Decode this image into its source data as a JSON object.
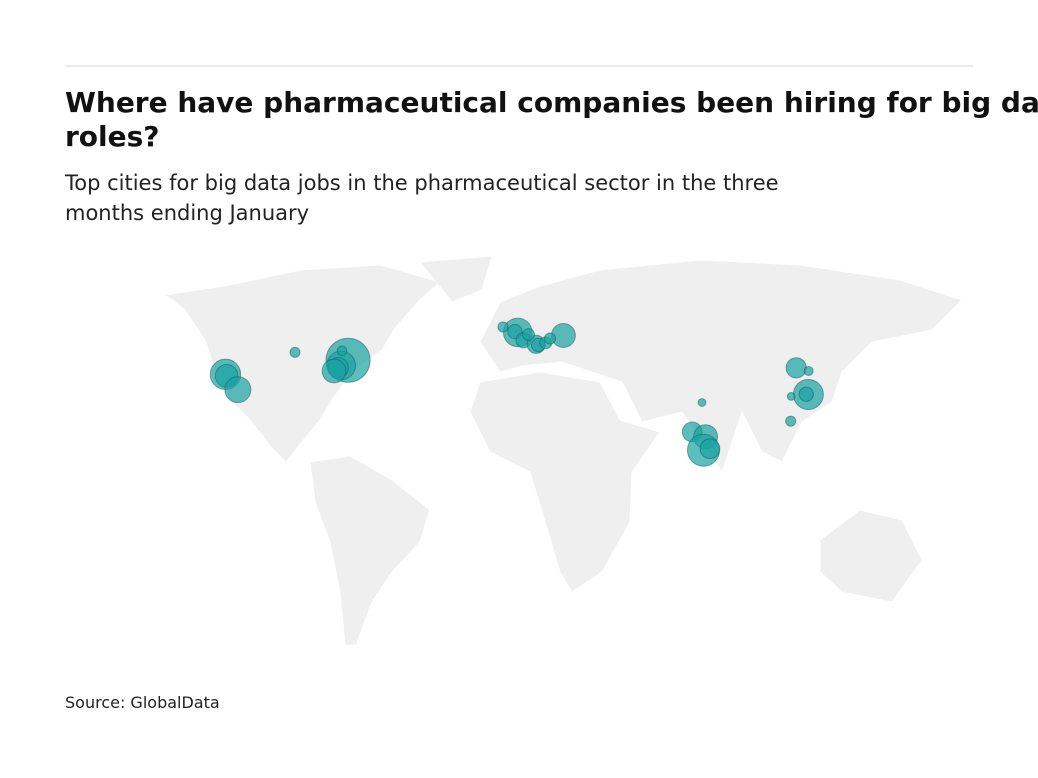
{
  "chart_data": {
    "type": "bubble-map",
    "title": "Where have pharmaceutical companies been hiring for big data roles?",
    "subtitle": "Top cities for big data jobs in the pharmaceutical sector in the three months ending January",
    "source": "Source: GlobalData",
    "color": "#1aa3a3",
    "points": [
      {
        "lon": -122.4,
        "lat": 37.8,
        "value": 90
      },
      {
        "lon": -121.9,
        "lat": 37.3,
        "value": 50
      },
      {
        "lon": -117.2,
        "lat": 32.8,
        "value": 66
      },
      {
        "lon": -71.1,
        "lat": 42.4,
        "value": 190
      },
      {
        "lon": -74.0,
        "lat": 40.7,
        "value": 80
      },
      {
        "lon": -75.2,
        "lat": 40.0,
        "value": 40
      },
      {
        "lon": -77.0,
        "lat": 38.9,
        "value": 55
      },
      {
        "lon": -93.3,
        "lat": 45.0,
        "value": 10
      },
      {
        "lon": -73.6,
        "lat": 45.5,
        "value": 9
      },
      {
        "lon": -0.1,
        "lat": 51.5,
        "value": 80
      },
      {
        "lon": -1.3,
        "lat": 51.8,
        "value": 20
      },
      {
        "lon": -6.3,
        "lat": 53.3,
        "value": 10
      },
      {
        "lon": 2.3,
        "lat": 48.9,
        "value": 22
      },
      {
        "lon": 7.6,
        "lat": 47.6,
        "value": 32
      },
      {
        "lon": 8.5,
        "lat": 47.4,
        "value": 18
      },
      {
        "lon": 4.4,
        "lat": 50.8,
        "value": 14
      },
      {
        "lon": 11.6,
        "lat": 48.1,
        "value": 14
      },
      {
        "lon": 19.0,
        "lat": 50.5,
        "value": 56
      },
      {
        "lon": 13.4,
        "lat": 49.5,
        "value": 12
      },
      {
        "lon": 72.9,
        "lat": 19.0,
        "value": 38
      },
      {
        "lon": 78.5,
        "lat": 17.4,
        "value": 56
      },
      {
        "lon": 77.6,
        "lat": 13.0,
        "value": 100
      },
      {
        "lon": 80.3,
        "lat": 13.5,
        "value": 38
      },
      {
        "lon": 77.0,
        "lat": 28.6,
        "value": 6
      },
      {
        "lon": 116.4,
        "lat": 39.9,
        "value": 40
      },
      {
        "lon": 121.5,
        "lat": 31.2,
        "value": 88
      },
      {
        "lon": 120.6,
        "lat": 31.3,
        "value": 20
      },
      {
        "lon": 114.3,
        "lat": 30.6,
        "value": 6
      },
      {
        "lon": 114.1,
        "lat": 22.5,
        "value": 10
      },
      {
        "lon": 121.6,
        "lat": 38.9,
        "value": 8
      }
    ]
  }
}
